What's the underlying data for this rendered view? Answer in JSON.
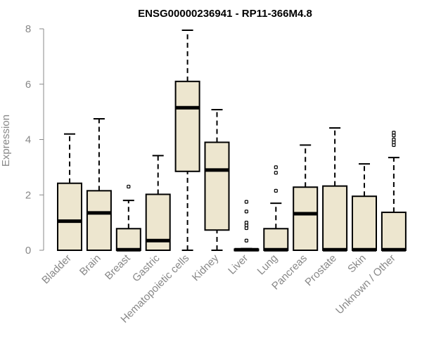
{
  "chart_data": {
    "type": "boxplot",
    "title": "ENSG00000236941 - RP11-366M4.8",
    "ylabel": "Expression",
    "xlabel": "",
    "ylim": [
      0,
      8
    ],
    "yticks": [
      0,
      2,
      4,
      6,
      8
    ],
    "grid": false,
    "legend": "none",
    "colors": {
      "box_fill": "#ede6cf",
      "box_stroke": "#000000",
      "axis": "#888888",
      "text": "#888888",
      "title": "#000000"
    },
    "categories": [
      "Bladder",
      "Brain",
      "Breast",
      "Gastric",
      "Hematopoietic cells",
      "Kidney",
      "Liver",
      "Lung",
      "Pancreas",
      "Prostate",
      "Skin",
      "Unknown / Other"
    ],
    "boxes": [
      {
        "min": 0,
        "q1": 0,
        "median": 1.05,
        "q3": 2.42,
        "max": 4.2,
        "outliers": []
      },
      {
        "min": 0,
        "q1": 0,
        "median": 1.35,
        "q3": 2.15,
        "max": 4.75,
        "outliers": []
      },
      {
        "min": 0,
        "q1": 0,
        "median": 0.02,
        "q3": 0.78,
        "max": 1.8,
        "outliers": [
          2.3
        ]
      },
      {
        "min": 0,
        "q1": 0,
        "median": 0.35,
        "q3": 2.02,
        "max": 3.42,
        "outliers": []
      },
      {
        "min": 0,
        "q1": 2.85,
        "median": 5.15,
        "q3": 6.1,
        "max": 7.95,
        "outliers": []
      },
      {
        "min": 0,
        "q1": 0.73,
        "median": 2.9,
        "q3": 3.9,
        "max": 5.08,
        "outliers": []
      },
      {
        "min": 0,
        "q1": 0,
        "median": 0.02,
        "q3": 0.04,
        "max": 0.06,
        "outliers": [
          0.35,
          0.8,
          0.9,
          1.0,
          1.4,
          1.75
        ]
      },
      {
        "min": 0,
        "q1": 0,
        "median": 0.02,
        "q3": 0.78,
        "max": 1.7,
        "outliers": [
          2.15,
          2.8,
          3.0
        ]
      },
      {
        "min": 0,
        "q1": 0,
        "median": 1.32,
        "q3": 2.28,
        "max": 3.8,
        "outliers": []
      },
      {
        "min": 0,
        "q1": 0,
        "median": 0.02,
        "q3": 2.32,
        "max": 4.42,
        "outliers": []
      },
      {
        "min": 0,
        "q1": 0,
        "median": 0.02,
        "q3": 1.95,
        "max": 3.12,
        "outliers": []
      },
      {
        "min": 0,
        "q1": 0,
        "median": 0.02,
        "q3": 1.37,
        "max": 3.35,
        "outliers": [
          3.8,
          3.9,
          4.0,
          4.15,
          4.25
        ]
      }
    ]
  }
}
